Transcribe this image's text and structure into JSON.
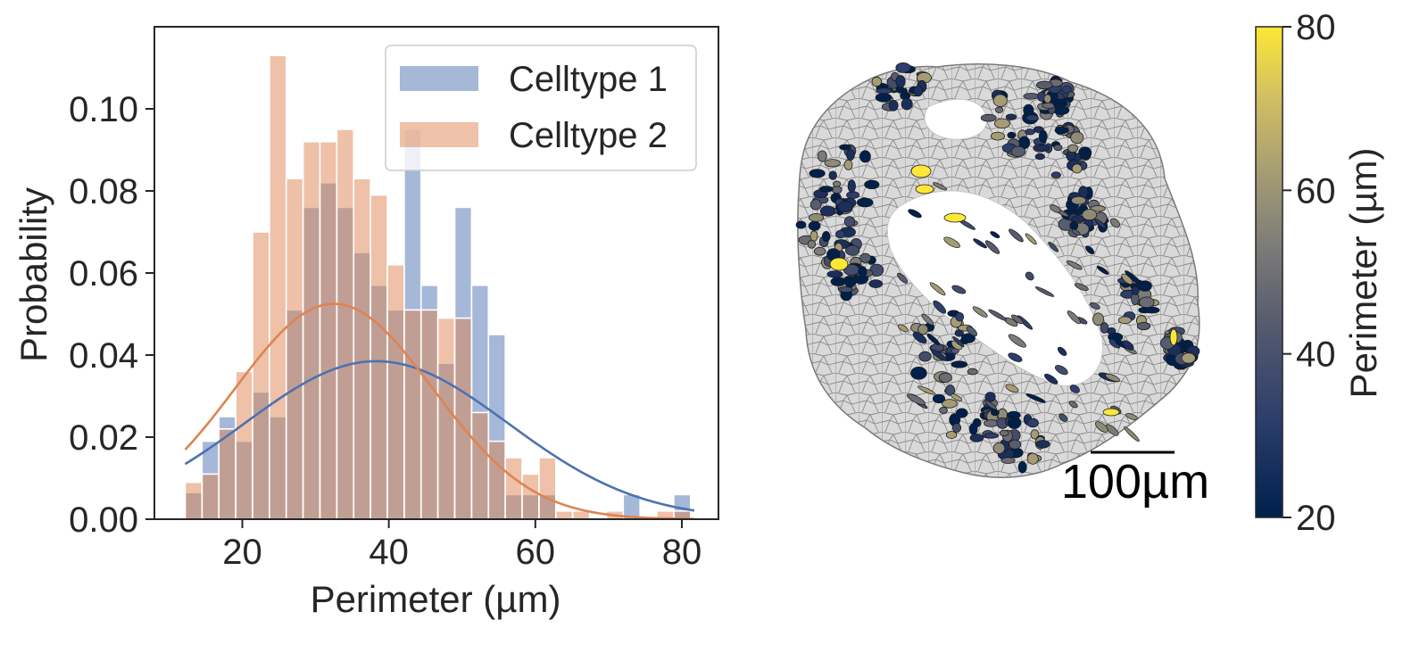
{
  "chart_data": [
    {
      "type": "bar",
      "subtype": "overlaid histogram with kde",
      "xlabel": "Perimeter (µm)",
      "ylabel": "Probability",
      "xlim": [
        8,
        85
      ],
      "ylim": [
        0,
        0.12
      ],
      "xticks": [
        20,
        40,
        60,
        80
      ],
      "xtick_labels": [
        "20",
        "40",
        "60",
        "80"
      ],
      "yticks": [
        0.0,
        0.02,
        0.04,
        0.06,
        0.08,
        0.1
      ],
      "ytick_labels": [
        "0.00",
        "0.02",
        "0.04",
        "0.06",
        "0.08",
        "0.10"
      ],
      "grid": false,
      "legend_position": "top-right",
      "bin_start": 12.2,
      "bin_width": 2.3,
      "series": [
        {
          "name": "Celltype 1",
          "color": "#4c72b0",
          "values": [
            0.0065,
            0.019,
            0.025,
            0.019,
            0.031,
            0.025,
            0.051,
            0.076,
            0.082,
            0.076,
            0.065,
            0.057,
            0.051,
            0.095,
            0.057,
            0.038,
            0.076,
            0.057,
            0.045,
            0.006,
            0.006,
            0.006,
            0,
            0,
            0,
            0,
            0.006,
            0,
            0,
            0.006
          ],
          "kde": {
            "mean": 38.3,
            "sd": 18.0,
            "peak": 0.0385
          }
        },
        {
          "name": "Celltype 2",
          "color": "#dd8452",
          "values": [
            0.009,
            0.011,
            0.022,
            0.036,
            0.07,
            0.113,
            0.083,
            0.092,
            0.092,
            0.095,
            0.083,
            0.079,
            0.062,
            0.051,
            0.051,
            0.049,
            0.049,
            0.026,
            0.019,
            0.015,
            0.011,
            0.015,
            0.002,
            0.002,
            0,
            0.002,
            0,
            0,
            0.002,
            0.002
          ],
          "kde": {
            "mean": 32.5,
            "sd": 13.5,
            "peak": 0.0525
          }
        }
      ]
    },
    {
      "type": "heatmap",
      "subtype": "cell segmentation map colored by perimeter",
      "colorbar_label": "Perimeter (µm)",
      "colorbar_range": [
        20,
        80
      ],
      "colorbar_ticks": [
        "20",
        "40",
        "60",
        "80"
      ],
      "colormap": "cividis",
      "scalebar_label": "100µm"
    }
  ]
}
